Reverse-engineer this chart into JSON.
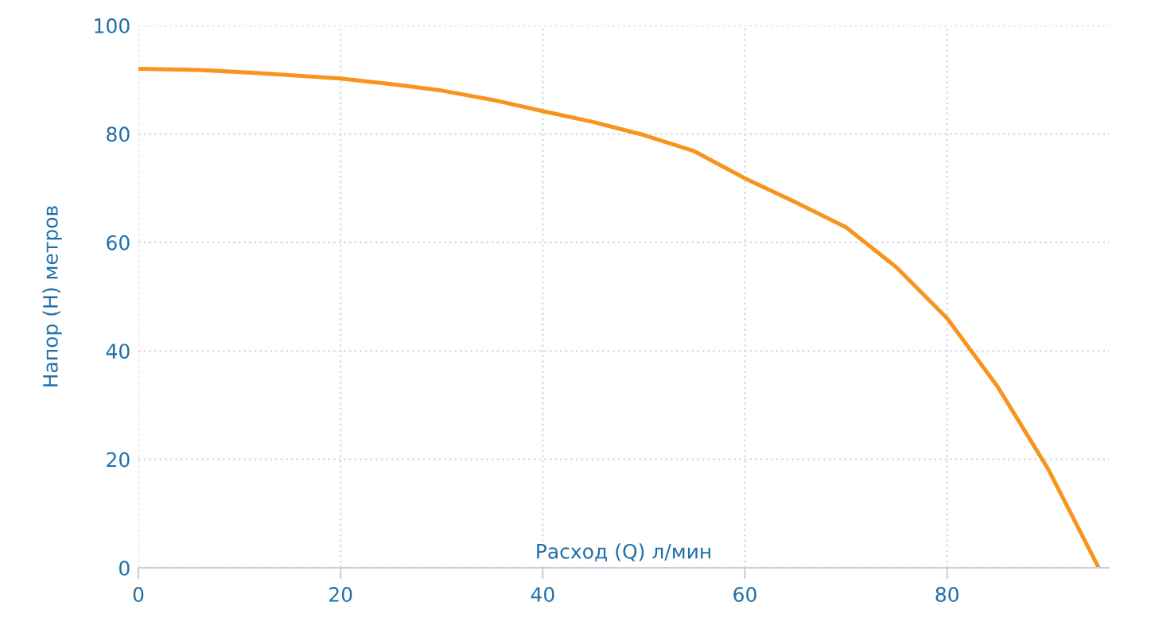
{
  "chart_data": {
    "type": "line",
    "xlabel": "Расход (Q) л/мин",
    "ylabel": "Напор (H) метров",
    "x": [
      0,
      6,
      12,
      20,
      25,
      30,
      35,
      40,
      45,
      50,
      55,
      60,
      65,
      70,
      75,
      80,
      85,
      90,
      95
    ],
    "series": [
      {
        "color": "#f7941d",
        "values": [
          92,
          91.8,
          91.2,
          90.2,
          89.2,
          88,
          86.3,
          84.2,
          82.2,
          79.8,
          76.8,
          71.8,
          67.4,
          62.8,
          55.4,
          46,
          33.4,
          18.2,
          0
        ]
      }
    ],
    "xlim": [
      0,
      96
    ],
    "ylim": [
      0,
      100
    ],
    "xticks": [
      0,
      20,
      40,
      60,
      80
    ],
    "yticks": [
      0,
      20,
      40,
      60,
      80,
      100
    ],
    "grid": true,
    "marker": "none",
    "line_style": "solid",
    "legend": false
  }
}
